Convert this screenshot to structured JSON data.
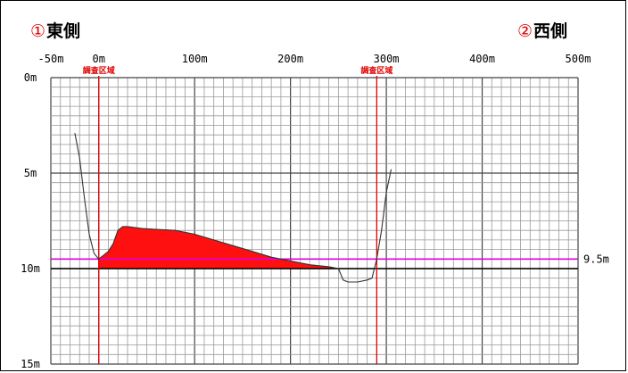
{
  "header": {
    "east_number": "①",
    "east_label": "東側",
    "west_number": "②",
    "west_label": "西側"
  },
  "chart_data": {
    "type": "area",
    "xlim": [
      -50,
      500
    ],
    "ylim": [
      0,
      15
    ],
    "y_inverted": true,
    "x_tick_labels": [
      "-50m",
      "0m",
      "100m",
      "200m",
      "300m",
      "400m",
      "500m"
    ],
    "x_tick_values": [
      -50,
      0,
      100,
      200,
      300,
      400,
      500
    ],
    "y_tick_labels": [
      "0m",
      "5m",
      "10m",
      "15m"
    ],
    "y_tick_values": [
      0,
      5,
      10,
      15
    ],
    "grid": true,
    "survey_boundaries": {
      "x": [
        0,
        290
      ],
      "label": "調査区域",
      "color": "#e00000"
    },
    "water_level": {
      "y": 9.5,
      "label": "9.5m",
      "color": "#e000e0"
    },
    "reference_line": {
      "y": 10,
      "color": "#000000"
    },
    "riverbed_profile": {
      "color": "#333333",
      "x": [
        -25,
        -20,
        -15,
        -10,
        -5,
        0,
        5,
        10,
        15,
        20,
        25,
        30,
        45,
        60,
        80,
        100,
        120,
        140,
        160,
        180,
        200,
        220,
        240,
        250,
        255,
        260,
        270,
        280,
        285,
        290,
        295,
        300,
        305
      ],
      "y": [
        2.9,
        4.2,
        6.3,
        8.2,
        9.2,
        9.5,
        9.3,
        9.1,
        8.7,
        8.0,
        7.8,
        7.8,
        7.9,
        7.95,
        8.0,
        8.2,
        8.5,
        8.8,
        9.1,
        9.4,
        9.6,
        9.8,
        9.9,
        10.0,
        10.6,
        10.7,
        10.7,
        10.6,
        10.5,
        9.5,
        8.0,
        6.0,
        4.8
      ]
    },
    "deposit_area": {
      "color": "#ff1010",
      "x": [
        0,
        5,
        10,
        15,
        20,
        25,
        30,
        45,
        60,
        80,
        100,
        120,
        140,
        160,
        180,
        200,
        220,
        240,
        245
      ],
      "top": [
        9.5,
        9.3,
        9.1,
        8.7,
        8.0,
        7.8,
        7.8,
        7.9,
        7.95,
        8.0,
        8.2,
        8.5,
        8.8,
        9.1,
        9.4,
        9.6,
        9.8,
        9.9,
        10.0
      ],
      "bottom": 10
    }
  }
}
